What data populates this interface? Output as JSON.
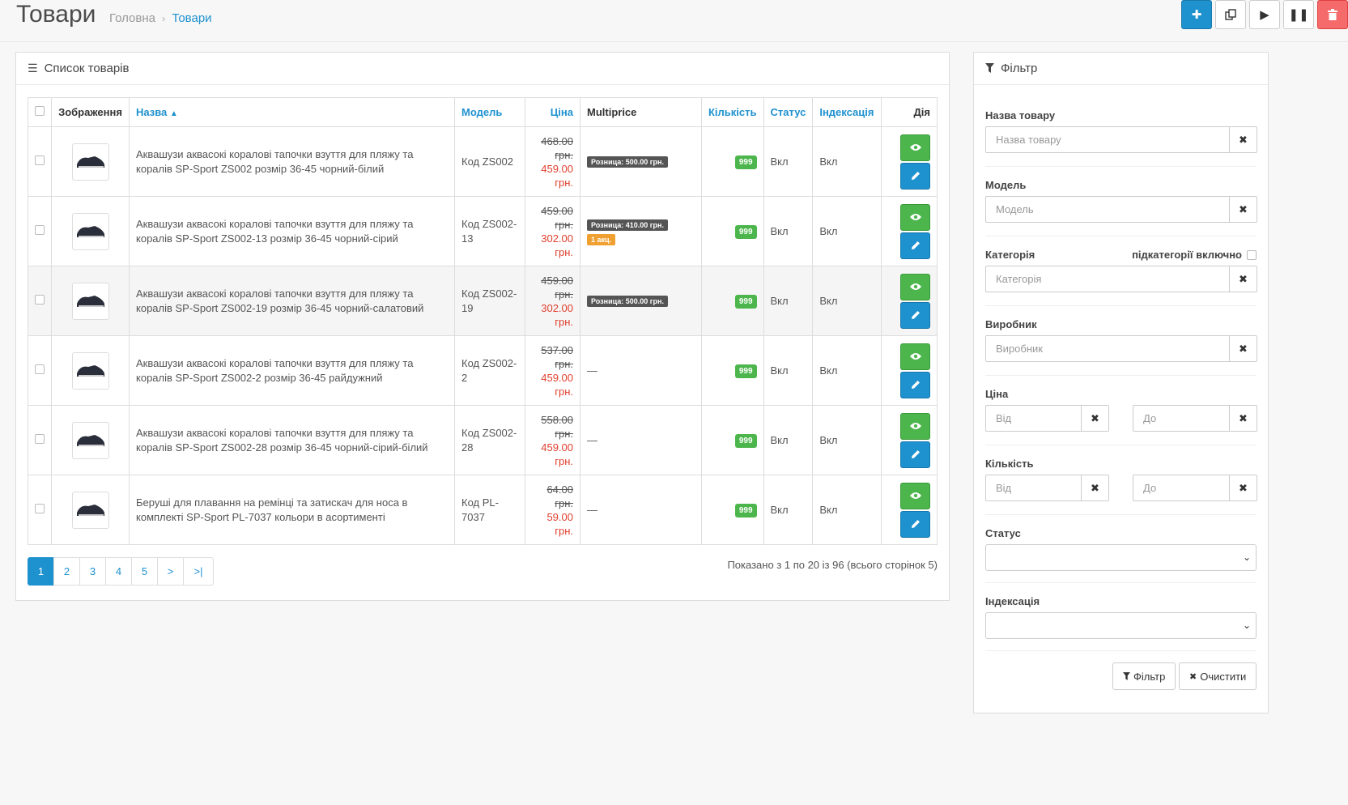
{
  "header": {
    "title": "Товари",
    "breadcrumb": [
      {
        "label": "Головна"
      },
      {
        "label": "Товари"
      }
    ]
  },
  "list_panel": {
    "title": "Список товарів",
    "columns": {
      "image": "Зображення",
      "name": "Назва",
      "model": "Модель",
      "price": "Ціна",
      "multiprice": "Multiprice",
      "quantity": "Кількість",
      "status": "Статус",
      "indexing": "Індексація",
      "action": "Дія"
    },
    "rows": [
      {
        "name": "Аквашузи аквасокі коралові тапочки взуття для пляжу та коралів SP-Sport ZS002 розмір 36-45 чорний-білий",
        "model": "Код ZS002",
        "price_old": "468.00 грн.",
        "price_new": "459.00 грн.",
        "mp_badge": "Розница: 500.00 грн.",
        "mp_action": "",
        "mp_dash": "",
        "qty": "999",
        "status": "Вкл",
        "indexing": "Вкл"
      },
      {
        "name": "Аквашузи аквасокі коралові тапочки взуття для пляжу та коралів SP-Sport ZS002-13 розмір 36-45 чорний-сірий",
        "model": "Код ZS002-13",
        "price_old": "459.00 грн.",
        "price_new": "302.00 грн.",
        "mp_badge": "Розница: 410.00 грн.",
        "mp_action": "1 акц.",
        "mp_dash": "",
        "qty": "999",
        "status": "Вкл",
        "indexing": "Вкл"
      },
      {
        "name": "Аквашузи аквасокі коралові тапочки взуття для пляжу та коралів SP-Sport ZS002-19 розмір 36-45 чорний-салатовий",
        "model": "Код ZS002-19",
        "price_old": "459.00 грн.",
        "price_new": "302.00 грн.",
        "mp_badge": "Розница: 500.00 грн.",
        "mp_action": "",
        "mp_dash": "",
        "qty": "999",
        "status": "Вкл",
        "indexing": "Вкл"
      },
      {
        "name": "Аквашузи аквасокі коралові тапочки взуття для пляжу та коралів SP-Sport ZS002-2 розмір 36-45 райдужний",
        "model": "Код ZS002-2",
        "price_old": "537.00 грн.",
        "price_new": "459.00 грн.",
        "mp_badge": "",
        "mp_action": "",
        "mp_dash": "—",
        "qty": "999",
        "status": "Вкл",
        "indexing": "Вкл"
      },
      {
        "name": "Аквашузи аквасокі коралові тапочки взуття для пляжу та коралів SP-Sport ZS002-28 розмір 36-45 чорний-сірий-білий",
        "model": "Код ZS002-28",
        "price_old": "558.00 грн.",
        "price_new": "459.00 грн.",
        "mp_badge": "",
        "mp_action": "",
        "mp_dash": "—",
        "qty": "999",
        "status": "Вкл",
        "indexing": "Вкл"
      },
      {
        "name": "Беруші для плавання на ремінці та затискач для носа в комплекті SP-Sport PL-7037 кольори в асортименті",
        "model": "Код PL-7037",
        "price_old": "64.00 грн.",
        "price_new": "59.00 грн.",
        "mp_badge": "",
        "mp_action": "",
        "mp_dash": "—",
        "qty": "999",
        "status": "Вкл",
        "indexing": "Вкл"
      }
    ],
    "pagination": [
      "1",
      "2",
      "3",
      "4",
      "5",
      ">",
      ">|"
    ],
    "pager_info": "Показано з 1 по 20 із 96 (всього сторінок 5)"
  },
  "filter": {
    "title": "Фільтр",
    "name_label": "Назва товару",
    "name_placeholder": "Назва товару",
    "model_label": "Модель",
    "model_placeholder": "Модель",
    "category_label": "Категорія",
    "subcat_label": "підкатегорії включно",
    "category_placeholder": "Категорія",
    "manufacturer_label": "Виробник",
    "manufacturer_placeholder": "Виробник",
    "price_label": "Ціна",
    "qty_label": "Кількість",
    "from_placeholder": "Від",
    "to_placeholder": "До",
    "status_label": "Статус",
    "indexing_label": "Індексація",
    "filter_button": "Фільтр",
    "clear_button": "Очистити"
  }
}
